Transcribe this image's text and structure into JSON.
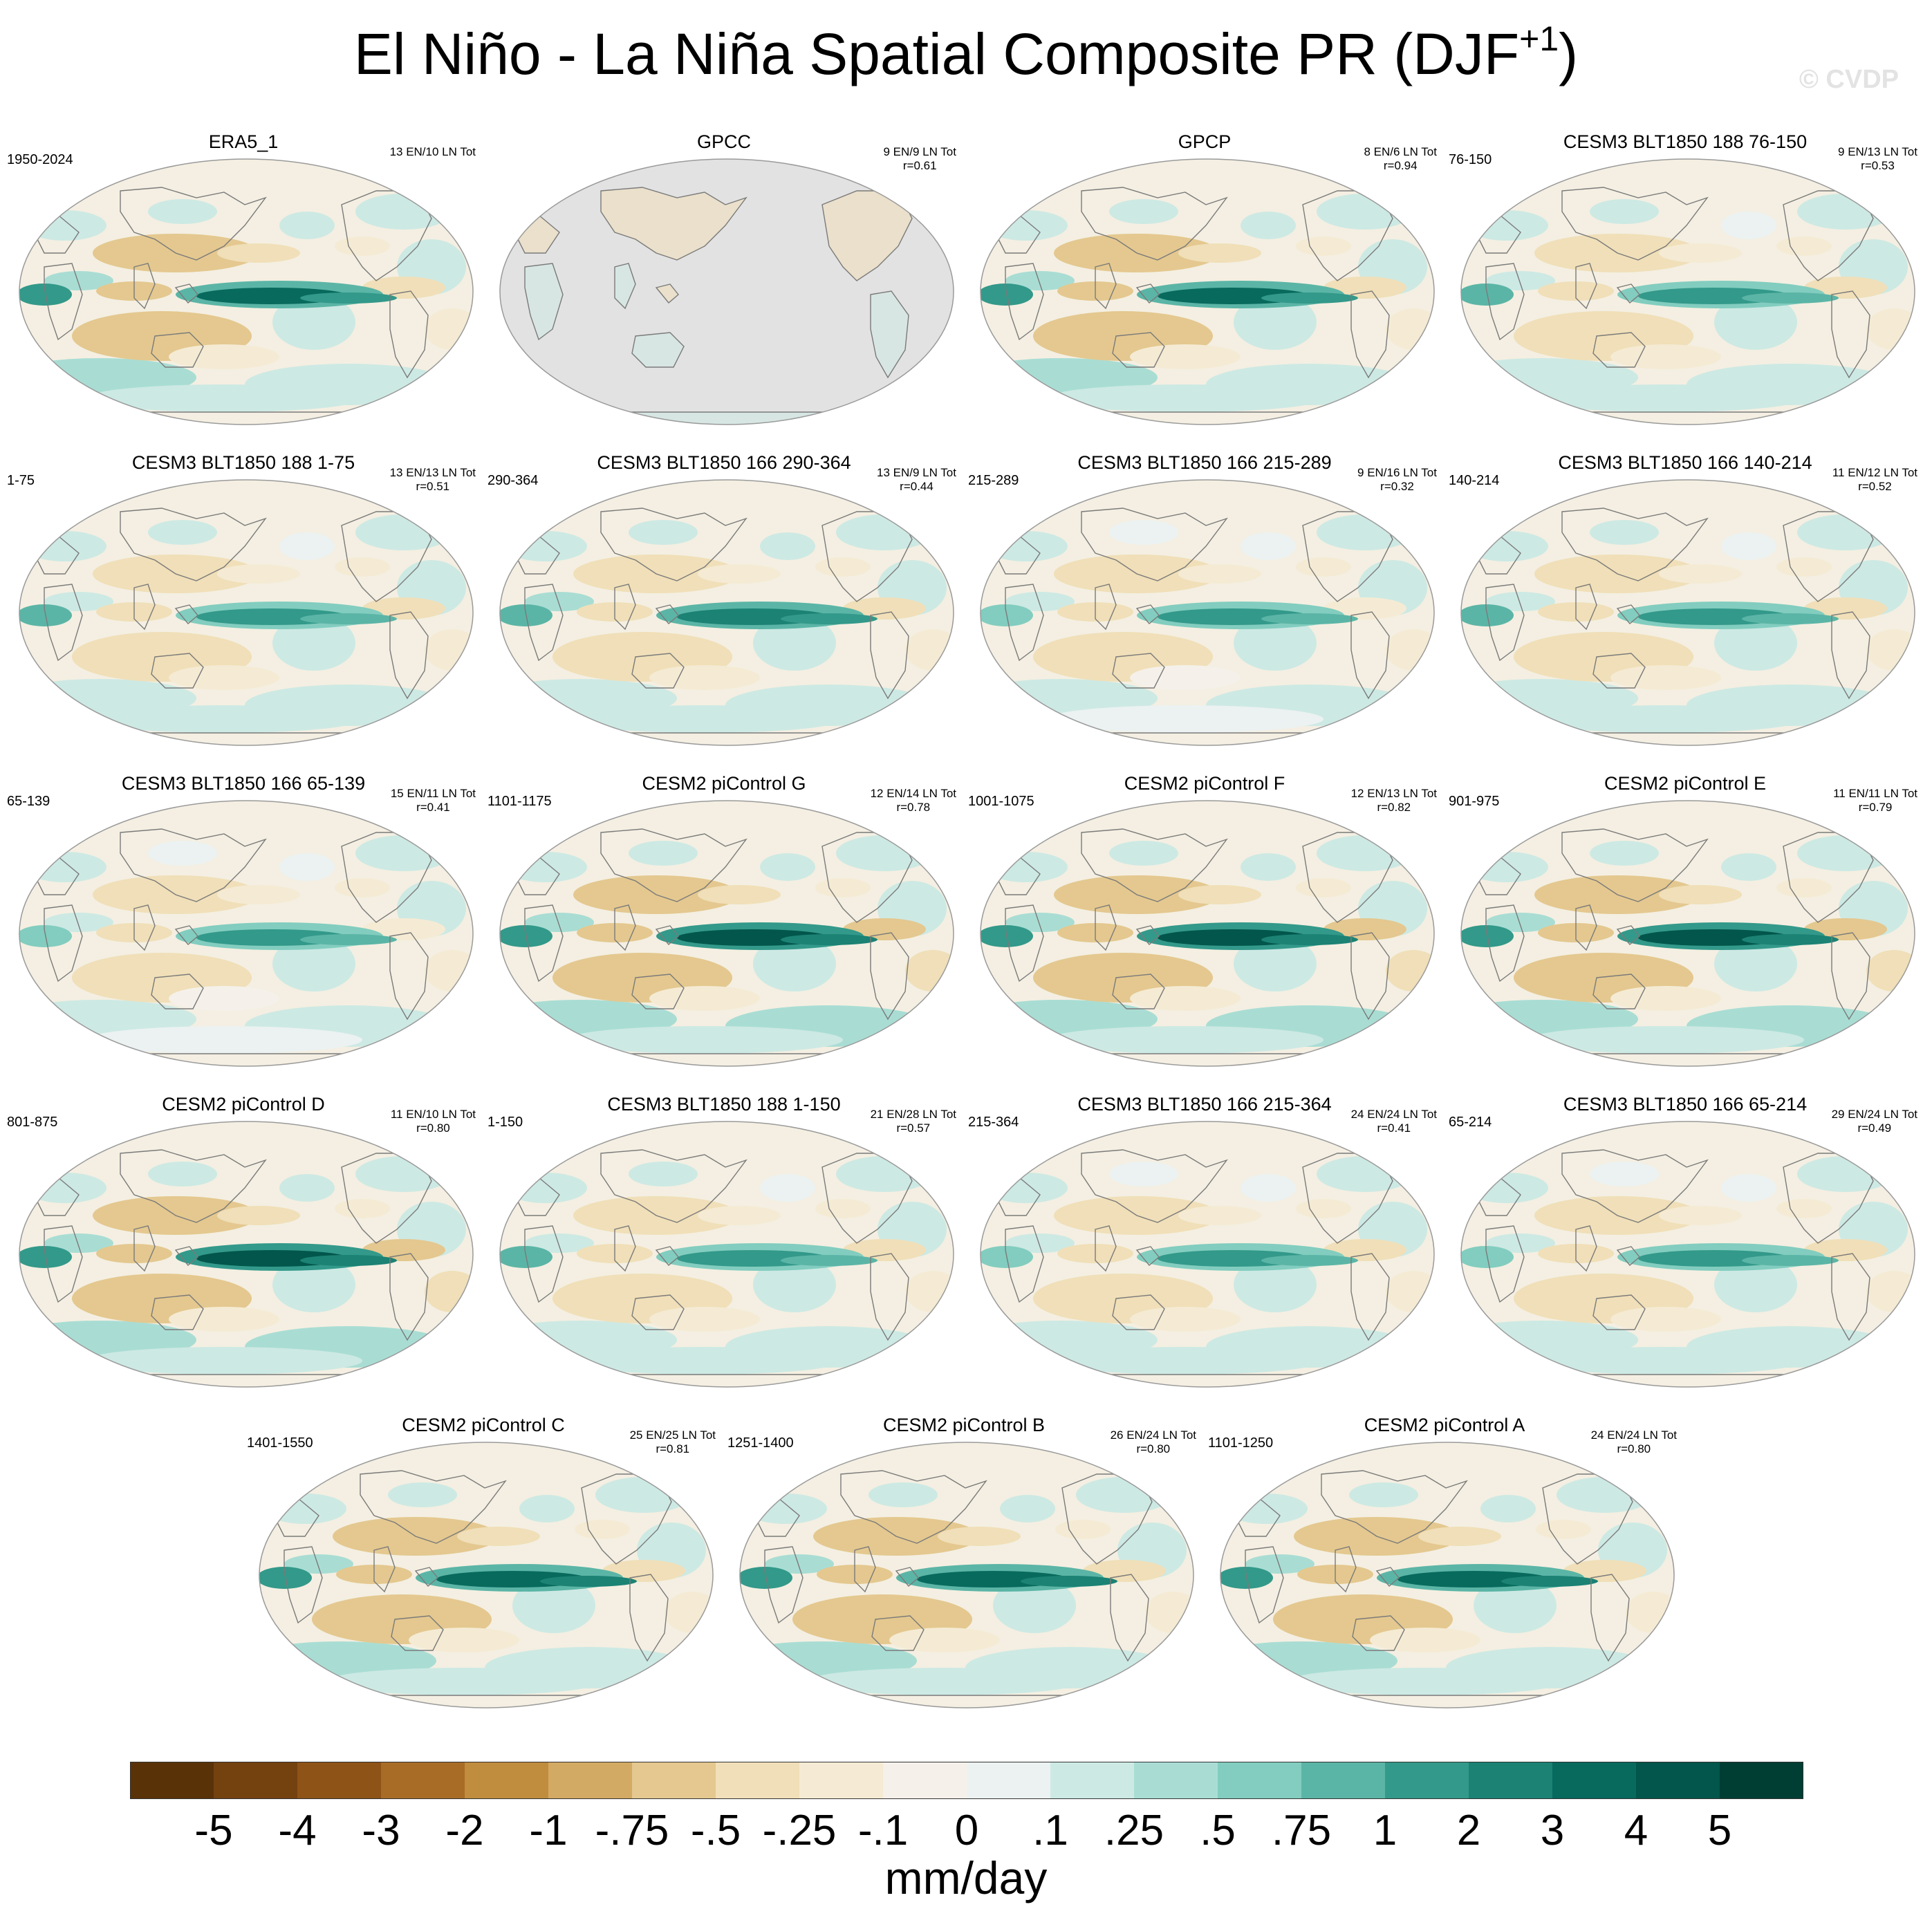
{
  "title": {
    "main": "El Niño - La Niña Spatial Composite PR (DJF",
    "sup": "+1",
    "close": ")"
  },
  "watermark": "© CVDP",
  "panels": [
    {
      "name": "ERA5_1",
      "years": "1950-2024",
      "stats": "13 EN/10 LN Tot",
      "r": "",
      "type": "full",
      "strength": 0.85
    },
    {
      "name": "GPCC",
      "years": "",
      "stats": "9 EN/9 LN Tot",
      "r": "r=0.61",
      "type": "land",
      "strength": 0.6
    },
    {
      "name": "GPCP",
      "years": "",
      "stats": "8 EN/6 LN Tot",
      "r": "r=0.94",
      "type": "full",
      "strength": 0.85
    },
    {
      "name": "CESM3 BLT1850 188 76-150",
      "years": "76-150",
      "stats": "9 EN/13 LN Tot",
      "r": "r=0.53",
      "type": "full",
      "strength": 0.7
    },
    {
      "name": "CESM3 BLT1850 188 1-75",
      "years": "1-75",
      "stats": "13 EN/13 LN Tot",
      "r": "r=0.51",
      "type": "full",
      "strength": 0.7
    },
    {
      "name": "CESM3 BLT1850 166 290-364",
      "years": "290-364",
      "stats": "13 EN/9 LN Tot",
      "r": "r=0.44",
      "type": "full",
      "strength": 0.75
    },
    {
      "name": "CESM3 BLT1850 166 215-289",
      "years": "215-289",
      "stats": "9 EN/16 LN Tot",
      "r": "r=0.32",
      "type": "full",
      "strength": 0.6
    },
    {
      "name": "CESM3 BLT1850 166 140-214",
      "years": "140-214",
      "stats": "11 EN/12 LN Tot",
      "r": "r=0.52",
      "type": "full",
      "strength": 0.7
    },
    {
      "name": "CESM3 BLT1850 166 65-139",
      "years": "65-139",
      "stats": "15 EN/11 LN Tot",
      "r": "r=0.41",
      "type": "full",
      "strength": 0.6
    },
    {
      "name": "CESM2 piControl G",
      "years": "1101-1175",
      "stats": "12 EN/14 LN Tot",
      "r": "r=0.78",
      "type": "full",
      "strength": 0.95
    },
    {
      "name": "CESM2 piControl F",
      "years": "1001-1075",
      "stats": "12 EN/13 LN Tot",
      "r": "r=0.82",
      "type": "full",
      "strength": 0.95
    },
    {
      "name": "CESM2 piControl E",
      "years": "901-975",
      "stats": "11 EN/11 LN Tot",
      "r": "r=0.79",
      "type": "full",
      "strength": 0.95
    },
    {
      "name": "CESM2 piControl D",
      "years": "801-875",
      "stats": "11 EN/10 LN Tot",
      "r": "r=0.80",
      "type": "full",
      "strength": 0.95
    },
    {
      "name": "CESM3 BLT1850 188 1-150",
      "years": "1-150",
      "stats": "21 EN/28 LN Tot",
      "r": "r=0.57",
      "type": "full",
      "strength": 0.7
    },
    {
      "name": "CESM3 BLT1850 166 215-364",
      "years": "215-364",
      "stats": "24 EN/24 LN Tot",
      "r": "r=0.41",
      "type": "full",
      "strength": 0.65
    },
    {
      "name": "CESM3 BLT1850 166 65-214",
      "years": "65-214",
      "stats": "29 EN/24 LN Tot",
      "r": "r=0.49",
      "type": "full",
      "strength": 0.65
    },
    {
      "name": "CESM2 piControl C",
      "years": "1401-1550",
      "stats": "25 EN/25 LN Tot",
      "r": "r=0.81",
      "type": "full",
      "strength": 0.9
    },
    {
      "name": "CESM2 piControl B",
      "years": "1251-1400",
      "stats": "26 EN/24 LN Tot",
      "r": "r=0.80",
      "type": "full",
      "strength": 0.9
    },
    {
      "name": "CESM2 piControl A",
      "years": "1101-1250",
      "stats": "24 EN/24 LN Tot",
      "r": "r=0.80",
      "type": "full",
      "strength": 0.9
    }
  ],
  "colorbar": {
    "colors": [
      "#5a3208",
      "#74420f",
      "#8e5316",
      "#a86c27",
      "#c08c3e",
      "#d3aa63",
      "#e4c88f",
      "#f0dfb8",
      "#f5ebd4",
      "#f5f1ea",
      "#ebf2f1",
      "#cde9e4",
      "#a9ddd4",
      "#82cdbf",
      "#5bb5a6",
      "#33998a",
      "#1b8274",
      "#076a5d",
      "#02564b",
      "#003d33"
    ],
    "labels": [
      "-5",
      "-4",
      "-3",
      "-2",
      "-1",
      "-.75",
      "-.5",
      "-.25",
      "-.1",
      "0",
      ".1",
      ".25",
      ".5",
      ".75",
      "1",
      "2",
      "3",
      "4",
      "5"
    ],
    "units": "mm/day"
  }
}
